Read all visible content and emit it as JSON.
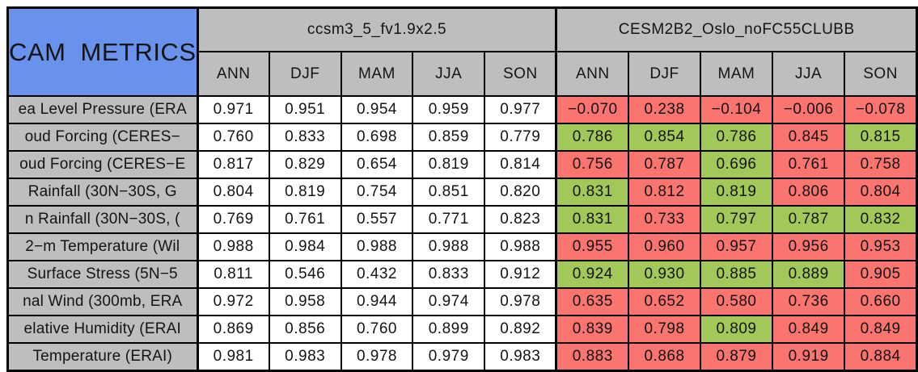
{
  "chart_data": {
    "type": "table",
    "title": "CAM METRICS",
    "column_groups": [
      {
        "name": "ccsm3_5_fv1.9x2.5",
        "columns": [
          "ANN",
          "DJF",
          "MAM",
          "JJA",
          "SON"
        ]
      },
      {
        "name": "CESM2B2_Oslo_noFC55CLUBB",
        "columns": [
          "ANN",
          "DJF",
          "MAM",
          "JJA",
          "SON"
        ]
      }
    ],
    "rows": [
      {
        "label": "ea Level Pressure (ERA",
        "ccsm": [
          "0.971",
          "0.951",
          "0.954",
          "0.959",
          "0.977"
        ],
        "cesm": [
          {
            "value": "−0.070",
            "highlight": "red"
          },
          {
            "value": "0.238",
            "highlight": "red"
          },
          {
            "value": "−0.104",
            "highlight": "red"
          },
          {
            "value": "−0.006",
            "highlight": "red"
          },
          {
            "value": "−0.078",
            "highlight": "red"
          }
        ]
      },
      {
        "label": "oud Forcing (CERES−",
        "ccsm": [
          "0.760",
          "0.833",
          "0.698",
          "0.859",
          "0.779"
        ],
        "cesm": [
          {
            "value": "0.786",
            "highlight": "green"
          },
          {
            "value": "0.854",
            "highlight": "green"
          },
          {
            "value": "0.786",
            "highlight": "green"
          },
          {
            "value": "0.845",
            "highlight": "red"
          },
          {
            "value": "0.815",
            "highlight": "green"
          }
        ]
      },
      {
        "label": "oud Forcing (CERES−E",
        "ccsm": [
          "0.817",
          "0.829",
          "0.654",
          "0.819",
          "0.814"
        ],
        "cesm": [
          {
            "value": "0.756",
            "highlight": "red"
          },
          {
            "value": "0.787",
            "highlight": "red"
          },
          {
            "value": "0.696",
            "highlight": "green"
          },
          {
            "value": "0.761",
            "highlight": "red"
          },
          {
            "value": "0.758",
            "highlight": "red"
          }
        ]
      },
      {
        "label": "Rainfall (30N−30S, G",
        "ccsm": [
          "0.804",
          "0.819",
          "0.754",
          "0.851",
          "0.820"
        ],
        "cesm": [
          {
            "value": "0.831",
            "highlight": "green"
          },
          {
            "value": "0.812",
            "highlight": "red"
          },
          {
            "value": "0.819",
            "highlight": "green"
          },
          {
            "value": "0.806",
            "highlight": "red"
          },
          {
            "value": "0.804",
            "highlight": "red"
          }
        ]
      },
      {
        "label": "n Rainfall (30N−30S, (",
        "ccsm": [
          "0.769",
          "0.761",
          "0.557",
          "0.771",
          "0.823"
        ],
        "cesm": [
          {
            "value": "0.831",
            "highlight": "green"
          },
          {
            "value": "0.733",
            "highlight": "red"
          },
          {
            "value": "0.797",
            "highlight": "green"
          },
          {
            "value": "0.787",
            "highlight": "green"
          },
          {
            "value": "0.832",
            "highlight": "green"
          }
        ]
      },
      {
        "label": "2−m Temperature (Wil",
        "ccsm": [
          "0.988",
          "0.984",
          "0.988",
          "0.988",
          "0.988"
        ],
        "cesm": [
          {
            "value": "0.955",
            "highlight": "red"
          },
          {
            "value": "0.960",
            "highlight": "red"
          },
          {
            "value": "0.957",
            "highlight": "red"
          },
          {
            "value": "0.956",
            "highlight": "red"
          },
          {
            "value": "0.953",
            "highlight": "red"
          }
        ]
      },
      {
        "label": "Surface Stress (5N−5",
        "ccsm": [
          "0.811",
          "0.546",
          "0.432",
          "0.833",
          "0.912"
        ],
        "cesm": [
          {
            "value": "0.924",
            "highlight": "green"
          },
          {
            "value": "0.930",
            "highlight": "green"
          },
          {
            "value": "0.885",
            "highlight": "green"
          },
          {
            "value": "0.889",
            "highlight": "green"
          },
          {
            "value": "0.905",
            "highlight": "red"
          }
        ]
      },
      {
        "label": "nal Wind (300mb, ERA",
        "ccsm": [
          "0.972",
          "0.958",
          "0.944",
          "0.974",
          "0.978"
        ],
        "cesm": [
          {
            "value": "0.635",
            "highlight": "red"
          },
          {
            "value": "0.652",
            "highlight": "red"
          },
          {
            "value": "0.580",
            "highlight": "red"
          },
          {
            "value": "0.736",
            "highlight": "red"
          },
          {
            "value": "0.660",
            "highlight": "red"
          }
        ]
      },
      {
        "label": "elative Humidity (ERAI",
        "ccsm": [
          "0.869",
          "0.856",
          "0.760",
          "0.899",
          "0.892"
        ],
        "cesm": [
          {
            "value": "0.839",
            "highlight": "red"
          },
          {
            "value": "0.798",
            "highlight": "red"
          },
          {
            "value": "0.809",
            "highlight": "green"
          },
          {
            "value": "0.849",
            "highlight": "red"
          },
          {
            "value": "0.849",
            "highlight": "red"
          }
        ]
      },
      {
        "label": "Temperature (ERAI)",
        "ccsm": [
          "0.981",
          "0.983",
          "0.978",
          "0.979",
          "0.983"
        ],
        "cesm": [
          {
            "value": "0.883",
            "highlight": "red"
          },
          {
            "value": "0.868",
            "highlight": "red"
          },
          {
            "value": "0.879",
            "highlight": "red"
          },
          {
            "value": "0.919",
            "highlight": "red"
          },
          {
            "value": "0.884",
            "highlight": "red"
          }
        ]
      }
    ],
    "colors": {
      "header_blue": "#6892EB",
      "header_gray": "#BEBEBE",
      "value_white": "#FFFFFF",
      "better_green": "#A3C85A",
      "worse_red": "#FA7470"
    },
    "layout": "grid on, black cell borders; left label column and headers gray; first model values on white; second model values highlighted red or green per cell"
  }
}
